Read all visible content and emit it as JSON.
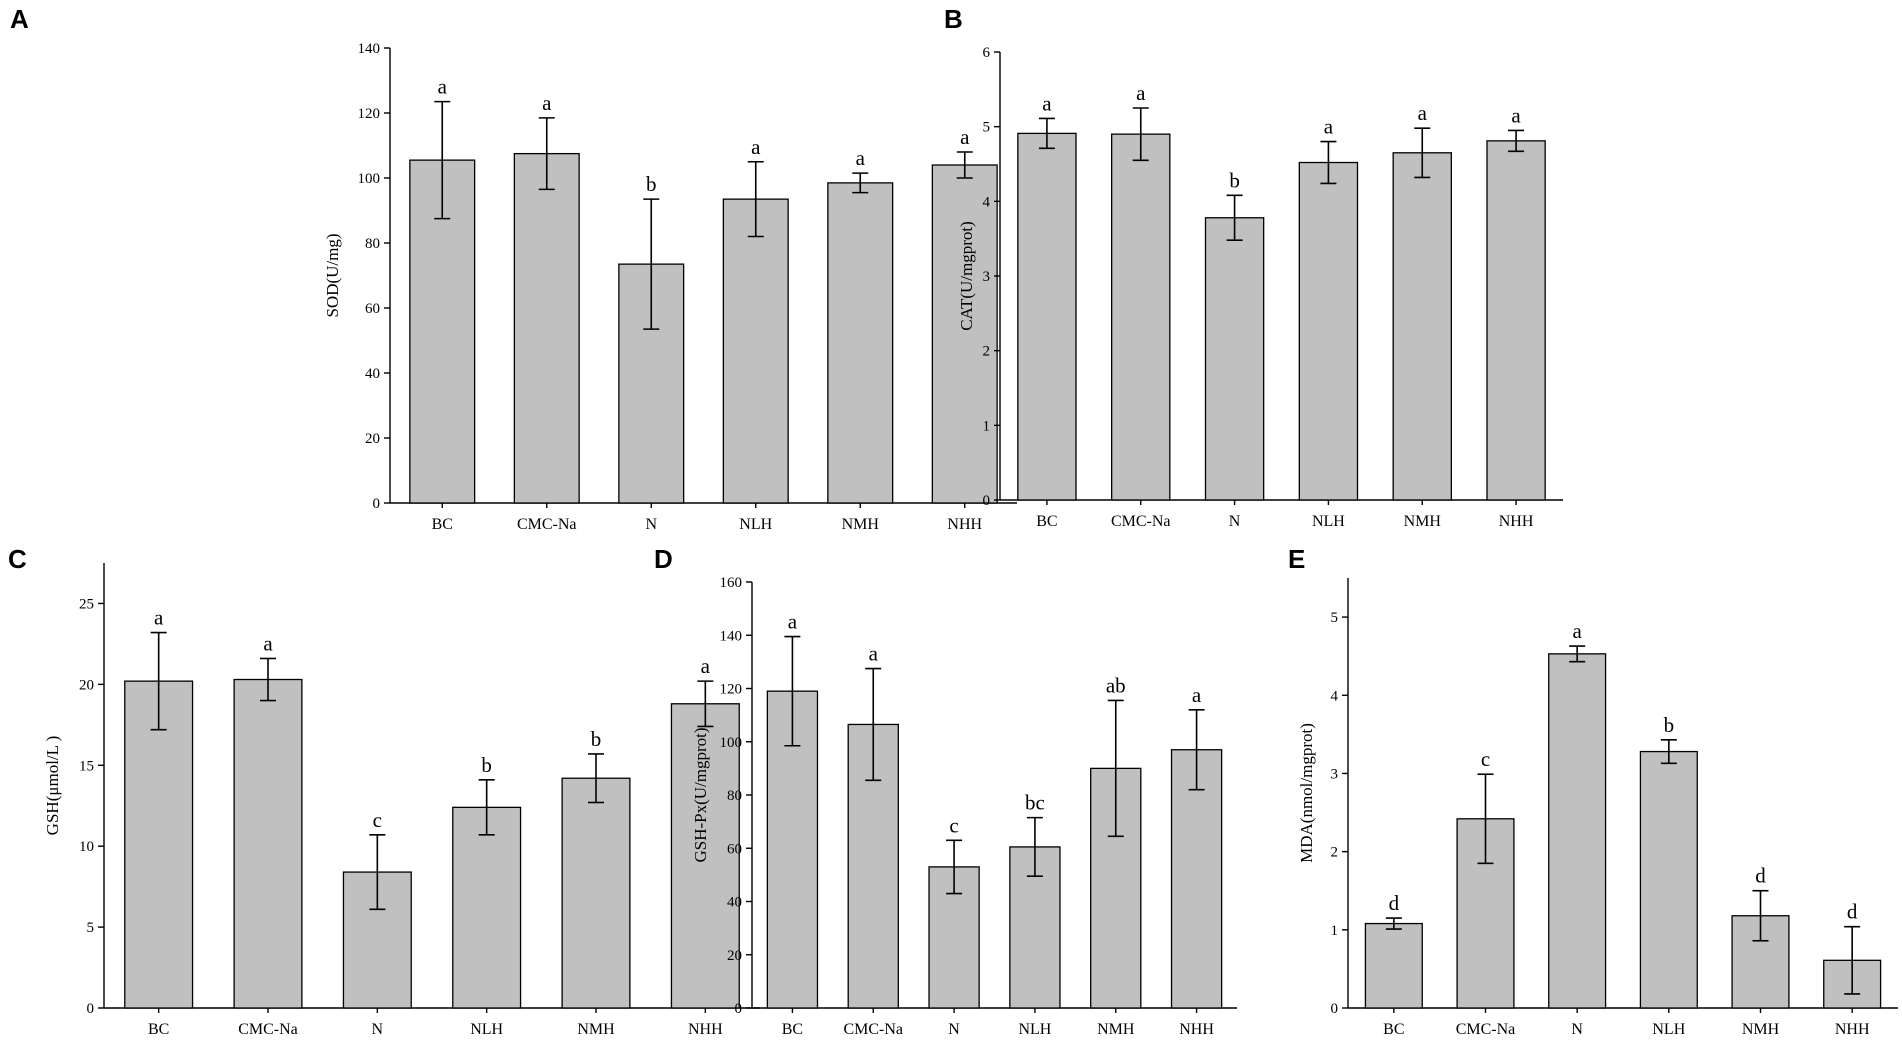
{
  "chart_data": [
    {
      "panel": "A",
      "type": "bar",
      "categories": [
        "BC",
        "CMC-Na",
        "N",
        "NLH",
        "NMH",
        "NHH"
      ],
      "values": [
        105.5,
        107.5,
        73.5,
        93.5,
        98.5,
        104
      ],
      "errors": [
        18,
        11,
        20,
        11.5,
        3,
        4
      ],
      "significance": [
        "a",
        "a",
        "b",
        "a",
        "a",
        "a"
      ],
      "ylabel": "SOD(U/mg)",
      "xlabel": "",
      "ylim": [
        0,
        140
      ],
      "yticks": [
        0,
        20,
        40,
        60,
        80,
        100,
        120,
        140
      ],
      "grid": false
    },
    {
      "panel": "B",
      "type": "bar",
      "categories": [
        "BC",
        "CMC-Na",
        "N",
        "NLH",
        "NMH",
        "NHH"
      ],
      "values": [
        4.91,
        4.9,
        3.78,
        4.52,
        4.65,
        4.81
      ],
      "errors": [
        0.2,
        0.35,
        0.3,
        0.28,
        0.33,
        0.14
      ],
      "significance": [
        "a",
        "a",
        "b",
        "a",
        "a",
        "a"
      ],
      "ylabel": "CAT(U/mgprot)",
      "xlabel": "",
      "ylim": [
        0,
        6
      ],
      "yticks": [
        0,
        1,
        2,
        3,
        4,
        5,
        6
      ],
      "grid": false
    },
    {
      "panel": "C",
      "type": "bar",
      "categories": [
        "BC",
        "CMC-Na",
        "N",
        "NLH",
        "NMH",
        "NHH"
      ],
      "values": [
        20.2,
        20.3,
        8.4,
        12.4,
        14.2,
        18.8
      ],
      "errors": [
        3.0,
        1.3,
        2.3,
        1.7,
        1.5,
        1.4
      ],
      "significance": [
        "a",
        "a",
        "c",
        "b",
        "b",
        "a"
      ],
      "ylabel": "GSH(μmol/L )",
      "xlabel": "",
      "ylim": [
        0,
        27.5
      ],
      "yticks": [
        0,
        5,
        10,
        15,
        20,
        25
      ],
      "grid": false
    },
    {
      "panel": "D",
      "type": "bar",
      "categories": [
        "BC",
        "CMC-Na",
        "N",
        "NLH",
        "NMH",
        "NHH"
      ],
      "values": [
        119,
        106.5,
        53,
        60.5,
        90,
        97
      ],
      "errors": [
        20.5,
        21,
        10,
        11,
        25.5,
        15
      ],
      "significance": [
        "a",
        "a",
        "c",
        "bc",
        "ab",
        "a"
      ],
      "ylabel": "GSH-Px(U/mgprot)",
      "xlabel": "",
      "ylim": [
        0,
        160
      ],
      "yticks": [
        0,
        20,
        40,
        60,
        80,
        100,
        120,
        140,
        160
      ],
      "grid": false
    },
    {
      "panel": "E",
      "type": "bar",
      "categories": [
        "BC",
        "CMC-Na",
        "N",
        "NLH",
        "NMH",
        "NHH"
      ],
      "values": [
        1.08,
        2.42,
        4.53,
        3.28,
        1.18,
        0.61
      ],
      "errors": [
        0.07,
        0.57,
        0.1,
        0.15,
        0.32,
        0.43
      ],
      "significance": [
        "d",
        "c",
        "a",
        "b",
        "d",
        "d"
      ],
      "ylabel": "MDA(nmol/mgprot)",
      "xlabel": "",
      "ylim": [
        0,
        5.5
      ],
      "yticks": [
        0,
        1,
        2,
        3,
        4,
        5
      ],
      "grid": false
    }
  ],
  "colors": {
    "bar_fill": "#c0c0c0",
    "stroke": "#000000"
  }
}
